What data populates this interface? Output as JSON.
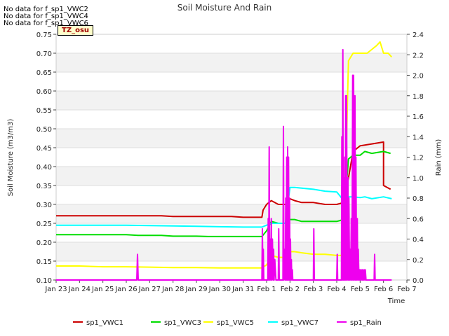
{
  "notices": [
    "No data for f_sp1_VWC2",
    "No data for f_sp1_VWC4",
    "No data for f_sp1_VWC6"
  ],
  "timezone_badge": "TZ_osu",
  "chart_data": {
    "type": "line",
    "title": "Soil Moisture And Rain",
    "xlabel": "Time",
    "ylabel": "Soil Moisture (m3/m3)",
    "y2label": "Rain (mm)",
    "x_ticks": [
      "Jan 23",
      "Jan 24",
      "Jan 25",
      "Jan 26",
      "Jan 27",
      "Jan 28",
      "Jan 29",
      "Jan 30",
      "Jan 31",
      "Feb 1",
      "Feb 2",
      "Feb 3",
      "Feb 4",
      "Feb 5",
      "Feb 6",
      "Feb 7"
    ],
    "xlim": [
      0,
      15
    ],
    "ylim": [
      0.1,
      0.75
    ],
    "y_ticks": [
      0.1,
      0.15,
      0.2,
      0.25,
      0.3,
      0.35,
      0.4,
      0.45,
      0.5,
      0.55,
      0.6,
      0.65,
      0.7,
      0.75
    ],
    "y2lim": [
      0.0,
      2.4
    ],
    "y2_ticks": [
      0.0,
      0.2,
      0.4,
      0.6,
      0.8,
      1.0,
      1.2,
      1.4,
      1.6,
      1.8,
      2.0,
      2.2,
      2.4
    ],
    "grid": "horizontal bands",
    "legend_position": "bottom",
    "series": [
      {
        "name": "sp1_VWC1",
        "color": "#cc0000",
        "axis": "left",
        "x": [
          0,
          1,
          1.5,
          2,
          2.5,
          3,
          3.5,
          4,
          4.5,
          5,
          5.5,
          6,
          6.5,
          7,
          7.5,
          8,
          8.5,
          8.8,
          8.85,
          9,
          9.2,
          9.5,
          9.8,
          10,
          10.2,
          10.5,
          11,
          11.5,
          12,
          12.3,
          12.5,
          12.7,
          12.9,
          13,
          13.5,
          14,
          14,
          14.3
        ],
        "y": [
          0.27,
          0.27,
          0.27,
          0.27,
          0.27,
          0.27,
          0.27,
          0.27,
          0.27,
          0.268,
          0.268,
          0.268,
          0.268,
          0.268,
          0.268,
          0.266,
          0.266,
          0.266,
          0.285,
          0.3,
          0.31,
          0.3,
          0.3,
          0.315,
          0.31,
          0.305,
          0.305,
          0.3,
          0.3,
          0.305,
          0.37,
          0.44,
          0.45,
          0.455,
          0.46,
          0.465,
          0.35,
          0.34
        ]
      },
      {
        "name": "sp1_VWC3",
        "color": "#00dd00",
        "axis": "left",
        "x": [
          0,
          0.5,
          1,
          1.5,
          2,
          2.5,
          3,
          3.5,
          4,
          4.5,
          5,
          5.5,
          6,
          6.5,
          7,
          7.5,
          8,
          8.5,
          8.8,
          9,
          9.2,
          9.5,
          9.8,
          10,
          10.2,
          10.5,
          11,
          11.5,
          12,
          12.3,
          12.5,
          12.7,
          13,
          13.2,
          13.5,
          14,
          14.3
        ],
        "y": [
          0.22,
          0.22,
          0.22,
          0.22,
          0.22,
          0.22,
          0.22,
          0.218,
          0.218,
          0.218,
          0.216,
          0.216,
          0.216,
          0.215,
          0.215,
          0.215,
          0.215,
          0.215,
          0.215,
          0.23,
          0.255,
          0.25,
          0.25,
          0.26,
          0.26,
          0.255,
          0.255,
          0.255,
          0.255,
          0.26,
          0.42,
          0.43,
          0.43,
          0.44,
          0.435,
          0.44,
          0.435
        ]
      },
      {
        "name": "sp1_VWC5",
        "color": "#ffff00",
        "axis": "left",
        "x": [
          0,
          1,
          2,
          3,
          4,
          5,
          6,
          7,
          8,
          8.8,
          9,
          9.2,
          9.5,
          9.8,
          10,
          10.2,
          10.5,
          11,
          11.5,
          12,
          12.3,
          12.5,
          12.7,
          13,
          13.3,
          13.5,
          13.7,
          13.85,
          14,
          14.2,
          14.35
        ],
        "y": [
          0.137,
          0.137,
          0.135,
          0.135,
          0.134,
          0.133,
          0.133,
          0.132,
          0.132,
          0.132,
          0.14,
          0.165,
          0.16,
          0.16,
          0.175,
          0.175,
          0.172,
          0.168,
          0.168,
          0.165,
          0.165,
          0.68,
          0.7,
          0.7,
          0.7,
          0.71,
          0.72,
          0.73,
          0.7,
          0.7,
          0.69
        ]
      },
      {
        "name": "sp1_VWC7",
        "color": "#00ffff",
        "axis": "left",
        "x": [
          0,
          1,
          2,
          3,
          4,
          5,
          6,
          7,
          8,
          8.8,
          9,
          9.2,
          9.5,
          9.8,
          10,
          10.2,
          10.5,
          11,
          11.5,
          12,
          12.3,
          12.5,
          12.7,
          13,
          13.2,
          13.5,
          14,
          14.35
        ],
        "y": [
          0.245,
          0.245,
          0.245,
          0.245,
          0.244,
          0.243,
          0.242,
          0.241,
          0.24,
          0.24,
          0.245,
          0.25,
          0.25,
          0.25,
          0.345,
          0.345,
          0.343,
          0.34,
          0.335,
          0.333,
          0.31,
          0.32,
          0.32,
          0.318,
          0.32,
          0.315,
          0.32,
          0.315
        ]
      },
      {
        "name": "sp1_Rain",
        "color": "#ee00ee",
        "axis": "right",
        "x": [
          0,
          3.45,
          3.48,
          3.51,
          8.8,
          8.82,
          8.84,
          8.86,
          8.88,
          9.05,
          9.07,
          9.09,
          9.11,
          9.13,
          9.15,
          9.18,
          9.2,
          9.22,
          9.25,
          9.28,
          9.3,
          9.32,
          9.35,
          9.4,
          9.5,
          9.52,
          9.54,
          9.6,
          9.7,
          9.72,
          9.74,
          9.78,
          9.8,
          9.82,
          9.84,
          9.86,
          9.88,
          9.9,
          9.92,
          9.94,
          9.96,
          9.98,
          10,
          10.02,
          10.04,
          10.06,
          10.08,
          10.1,
          10.12,
          11.0,
          11.02,
          11.04,
          12.0,
          12.02,
          12.04,
          12.2,
          12.22,
          12.24,
          12.26,
          12.28,
          12.3,
          12.32,
          12.34,
          12.36,
          12.38,
          12.4,
          12.42,
          12.45,
          12.48,
          12.5,
          12.52,
          12.55,
          12.58,
          12.6,
          12.62,
          12.65,
          12.68,
          12.7,
          12.72,
          12.75,
          12.78,
          12.8,
          12.82,
          12.85,
          12.88,
          12.9,
          12.92,
          12.95,
          12.98,
          13.0,
          13.02,
          13.05,
          13.08,
          13.1,
          13.12,
          13.15,
          13.18,
          13.2,
          13.22,
          13.25,
          13.6,
          13.62,
          13.64,
          14.0,
          14.35
        ],
        "y": [
          0,
          0,
          0.25,
          0,
          0,
          0.5,
          0,
          0.3,
          0,
          0,
          0.6,
          0,
          1.3,
          0,
          0.4,
          0,
          0.6,
          0,
          0.4,
          0,
          0.3,
          0,
          0.2,
          0,
          0,
          0.5,
          0,
          0,
          0,
          1.5,
          0,
          0.3,
          0,
          0.8,
          0,
          1.2,
          0,
          1.3,
          0,
          1.2,
          0,
          0.8,
          0,
          0.4,
          0,
          0.2,
          0,
          0.1,
          0,
          0,
          0.5,
          0,
          0,
          0.25,
          0,
          0,
          1.4,
          0,
          2.25,
          0,
          1.0,
          0,
          1.2,
          0,
          1.8,
          0,
          1.8,
          0,
          1.0,
          0,
          0.8,
          0,
          0.3,
          0,
          0.6,
          0,
          2.0,
          0,
          2.0,
          0,
          1.8,
          0,
          1.2,
          0,
          0.6,
          0,
          0.3,
          0,
          0.1,
          0,
          0.1,
          0,
          0.1,
          0,
          0.1,
          0,
          0.1,
          0,
          0.1,
          0,
          0,
          0.25,
          0,
          0,
          0
        ]
      }
    ]
  }
}
